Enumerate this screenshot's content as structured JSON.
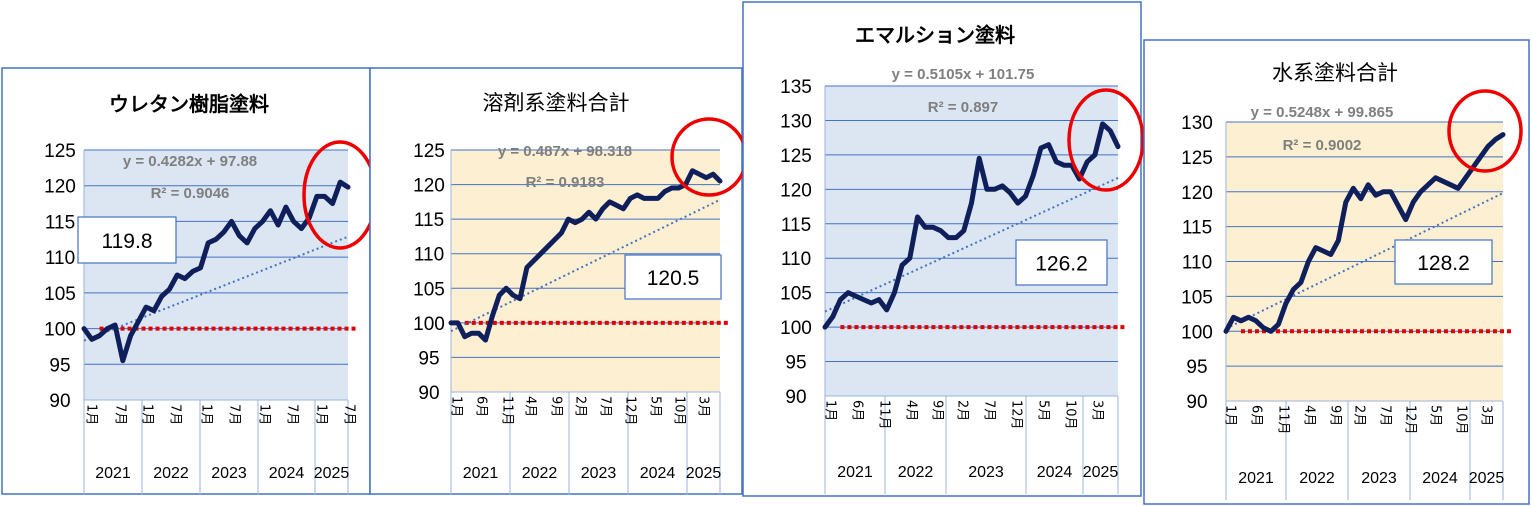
{
  "chart_data": [
    {
      "type": "line",
      "title": "ウレタン樹脂塗料",
      "equation": "y = 0.4282x + 97.88",
      "r2": "R² = 0.9046",
      "latest_label": "119.8",
      "background": "#dce6f2",
      "ylim": [
        90,
        125
      ],
      "yticks": [
        "125",
        "120",
        "115",
        "110",
        "105",
        "100",
        "95",
        "90"
      ],
      "x_month_labels": [
        "1月",
        "7月",
        "1月",
        "7月",
        "1月",
        "7月",
        "1月",
        "7月",
        "1月",
        "7月"
      ],
      "years": [
        "2021",
        "2022",
        "2023",
        "2024",
        "2025"
      ],
      "baseline": 100,
      "trend": {
        "slope": 0.4282,
        "intercept": 97.88
      },
      "series": [
        {
          "values": [
            100,
            98.5,
            99,
            100,
            100.5,
            95.5,
            99,
            101,
            103,
            102.5,
            104.5,
            105.5,
            107.5,
            107,
            108,
            108.5,
            112,
            112.5,
            113.5,
            115,
            113,
            112,
            114,
            115,
            116.5,
            114.5,
            117,
            115,
            114,
            115.5,
            118.5,
            118.5,
            117.5,
            120.5,
            119.8
          ]
        }
      ]
    },
    {
      "type": "line",
      "title": "溶剤系塗料合計",
      "equation": "y = 0.487x + 98.318",
      "r2": "R² = 0.9183",
      "latest_label": "120.5",
      "background": "#fdf0d2",
      "ylim": [
        90,
        125
      ],
      "yticks": [
        "125",
        "120",
        "115",
        "110",
        "105",
        "100",
        "95",
        "90"
      ],
      "x_month_labels": [
        "1月",
        "6月",
        "11月",
        "4月",
        "9月",
        "2月",
        "7月",
        "12月",
        "5月",
        "10月",
        "3月"
      ],
      "years": [
        "2021",
        "2022",
        "2023",
        "2024",
        "2025"
      ],
      "baseline": 100,
      "trend": {
        "slope": 0.487,
        "intercept": 98.318
      },
      "series": [
        {
          "values": [
            100,
            100,
            98,
            98.5,
            98.5,
            97.5,
            101,
            104,
            105,
            104,
            103.5,
            108,
            109,
            110,
            111,
            112,
            113,
            115,
            114.5,
            115,
            116,
            115,
            116.5,
            117.5,
            117,
            116.5,
            118,
            118.5,
            118,
            118,
            118,
            119,
            119.5,
            119.5,
            120,
            122,
            121.5,
            121,
            121.5,
            120.5
          ]
        }
      ]
    },
    {
      "type": "line",
      "title": "エマルション塗料",
      "equation": "y = 0.5105x + 101.75",
      "r2": "R² = 0.897",
      "latest_label": "126.2",
      "background": "#dce6f2",
      "ylim": [
        90,
        135
      ],
      "yticks": [
        "135",
        "130",
        "125",
        "120",
        "115",
        "110",
        "105",
        "100",
        "95",
        "90"
      ],
      "x_month_labels": [
        "1月",
        "6月",
        "11月",
        "4月",
        "9月",
        "2月",
        "7月",
        "12月",
        "5月",
        "10月",
        "3月"
      ],
      "years": [
        "2021",
        "2022",
        "2023",
        "2024",
        "2025"
      ],
      "baseline": 100,
      "trend": {
        "slope": 0.5105,
        "intercept": 101.75
      },
      "series": [
        {
          "values": [
            100,
            101.5,
            104,
            105,
            104.5,
            104,
            103.5,
            104,
            102.5,
            105,
            109,
            110,
            116,
            114.5,
            114.5,
            114,
            113,
            113,
            114,
            118,
            124.5,
            120,
            120,
            120.5,
            119.5,
            118,
            119,
            122,
            126,
            126.5,
            124,
            123.5,
            123.5,
            121.5,
            124,
            125,
            129.5,
            128.5,
            126.2
          ]
        }
      ]
    },
    {
      "type": "line",
      "title": "水系塗料合計",
      "equation": "y = 0.5248x + 99.865",
      "r2": "R² = 0.9002",
      "latest_label": "128.2",
      "background": "#fdf0d2",
      "ylim": [
        90,
        130
      ],
      "yticks": [
        "130",
        "125",
        "120",
        "115",
        "110",
        "105",
        "100",
        "95",
        "90"
      ],
      "x_month_labels": [
        "1月",
        "6月",
        "11月",
        "4月",
        "9月",
        "2月",
        "7月",
        "12月",
        "5月",
        "10月",
        "3月"
      ],
      "years": [
        "2021",
        "2022",
        "2023",
        "2024",
        "2025"
      ],
      "baseline": 100,
      "trend": {
        "slope": 0.5248,
        "intercept": 99.865
      },
      "series": [
        {
          "values": [
            100,
            102,
            101.5,
            102,
            101.5,
            100.5,
            100,
            101,
            104,
            106,
            107,
            110,
            112,
            111.5,
            111,
            113,
            118.5,
            120.5,
            119,
            121,
            119.5,
            120,
            120,
            118,
            116,
            118.5,
            120,
            121,
            122,
            121.5,
            121,
            120.5,
            122,
            123.5,
            125,
            126.5,
            127.5,
            128.2
          ]
        }
      ]
    }
  ],
  "colors": {
    "line": "#0f1f5c",
    "grid": "#4472c4",
    "trend": "#4472c4",
    "baseline": "#e00000",
    "ellipse": "#ee0000",
    "frame": "#4472c4"
  }
}
